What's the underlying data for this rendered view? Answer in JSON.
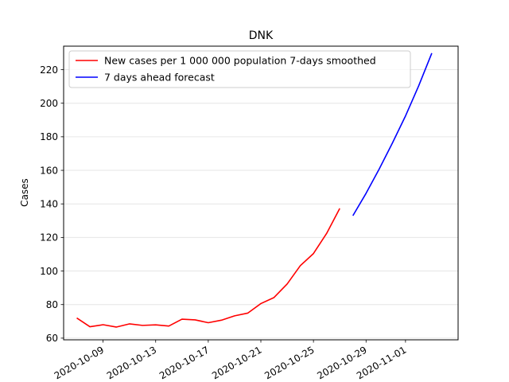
{
  "chart_data": {
    "type": "line",
    "title": "DNK",
    "xlabel": "",
    "ylabel": "Cases",
    "ylim": [
      59,
      234
    ],
    "xlim": [
      "2020-10-06",
      "2020-11-05"
    ],
    "yticks": [
      60,
      80,
      100,
      120,
      140,
      160,
      180,
      200,
      220
    ],
    "xticks": [
      "2020-10-09",
      "2020-10-13",
      "2020-10-17",
      "2020-10-21",
      "2020-10-25",
      "2020-10-29",
      "2020-11-01"
    ],
    "grid": "horizontal",
    "legend_position": "top-left",
    "series": [
      {
        "name": "New cases per 1 000 000 population 7-days smoothed",
        "color": "#ff0000",
        "x": [
          "2020-10-07",
          "2020-10-08",
          "2020-10-09",
          "2020-10-10",
          "2020-10-11",
          "2020-10-12",
          "2020-10-13",
          "2020-10-14",
          "2020-10-15",
          "2020-10-16",
          "2020-10-17",
          "2020-10-18",
          "2020-10-19",
          "2020-10-20",
          "2020-10-21",
          "2020-10-22",
          "2020-10-23",
          "2020-10-24",
          "2020-10-25",
          "2020-10-26",
          "2020-10-27"
        ],
        "y": [
          72.0,
          66.8,
          68.0,
          66.6,
          68.5,
          67.6,
          67.9,
          67.2,
          71.3,
          70.9,
          69.2,
          70.7,
          73.3,
          74.9,
          80.6,
          84.2,
          92.3,
          103.2,
          110.4,
          122.4,
          137.3
        ]
      },
      {
        "name": "7 days ahead forecast",
        "color": "#0000ff",
        "x": [
          "2020-10-28",
          "2020-10-29",
          "2020-10-30",
          "2020-10-31",
          "2020-11-01",
          "2020-11-02",
          "2020-11-03"
        ],
        "y": [
          133.0,
          146.3,
          160.8,
          176.2,
          192.4,
          210.3,
          229.8
        ]
      }
    ]
  }
}
